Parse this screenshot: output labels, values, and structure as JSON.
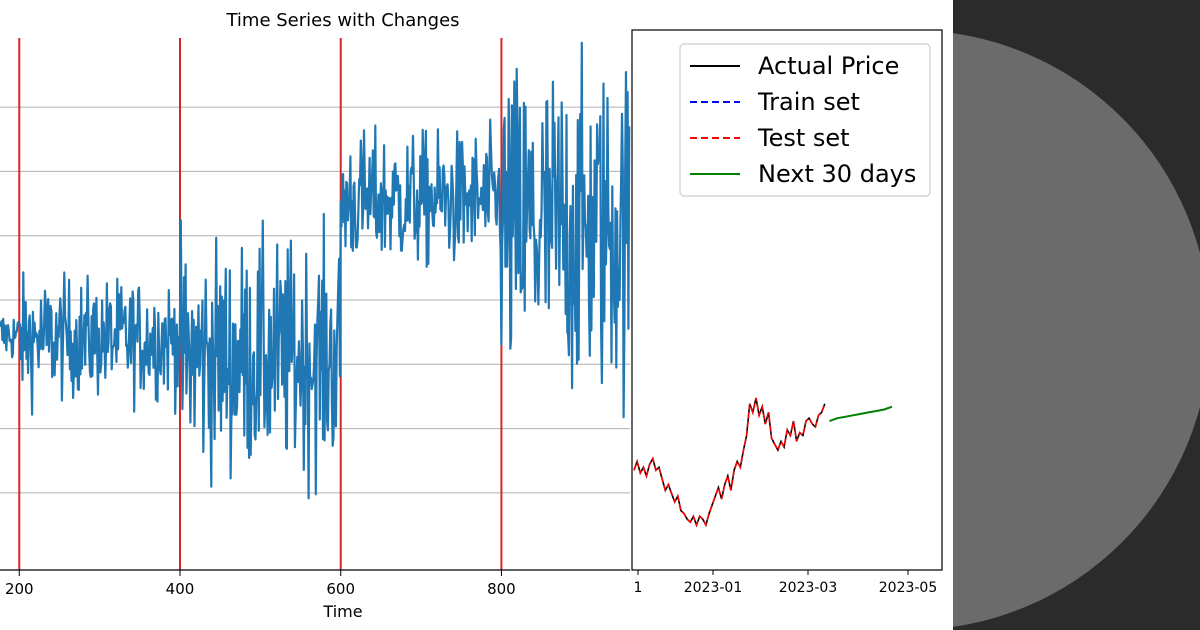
{
  "chart_data": [
    {
      "type": "line",
      "title": "Time Series with Changes",
      "xlabel": "Time",
      "ylabel": "",
      "xlim": [
        176,
        960
      ],
      "ylim": [
        -4.2,
        4.2
      ],
      "x_ticks": [
        200,
        400,
        600,
        800
      ],
      "x_tick_labels": [
        "200",
        "400",
        "600",
        "800"
      ],
      "y_gridlines": [
        3.0,
        2.0,
        1.0,
        0.0,
        -1.0,
        -2.0,
        -3.0
      ],
      "grid": "horizontal",
      "change_points": [
        200,
        400,
        600,
        800
      ],
      "series": [
        {
          "name": "value",
          "color": "#1f77b4",
          "segments": [
            {
              "x_start": 176,
              "x_end": 200,
              "mean": -0.55,
              "spread": 0.35
            },
            {
              "x_start": 200,
              "x_end": 400,
              "mean": -0.6,
              "spread": 0.75
            },
            {
              "x_start": 400,
              "x_end": 600,
              "mean": -0.9,
              "spread": 1.45
            },
            {
              "x_start": 600,
              "x_end": 800,
              "mean": 1.55,
              "spread": 0.85
            },
            {
              "x_start": 800,
              "x_end": 960,
              "mean": 1.1,
              "spread": 2.1
            }
          ]
        }
      ],
      "change_line_color": "#d62728"
    },
    {
      "type": "line",
      "title": "",
      "x_tick_labels": [
        "1",
        "2023-01",
        "2023-03",
        "2023-05"
      ],
      "ylim": [
        0,
        100
      ],
      "legend_position": "top-right",
      "legend": [
        {
          "label": "Actual Price",
          "color": "#000000",
          "style": "solid"
        },
        {
          "label": "Train set",
          "color": "#0000ff",
          "style": "dashed"
        },
        {
          "label": "Test set",
          "color": "#ff0000",
          "style": "dashed"
        },
        {
          "label": "Next 30 days",
          "color": "#008000",
          "style": "solid"
        }
      ],
      "series": [
        {
          "name": "Actual Price",
          "color": "#000000",
          "x_days": [
            0,
            2,
            4,
            6,
            8,
            10,
            12,
            14,
            16,
            18,
            20,
            22,
            24,
            26,
            28,
            30,
            32,
            34,
            36,
            38,
            40,
            42,
            44,
            46,
            48,
            50,
            52,
            54,
            56,
            58,
            60,
            62,
            64,
            66,
            68,
            70,
            72,
            74,
            76,
            78,
            80,
            82,
            84,
            86,
            88,
            90,
            92,
            94,
            96,
            98,
            100,
            102,
            104,
            106,
            108,
            110,
            112,
            114,
            116,
            118,
            120,
            122
          ],
          "values": [
            35,
            38,
            34,
            36,
            33,
            37,
            39,
            35,
            36,
            32,
            28,
            30,
            27,
            24,
            26,
            21,
            20,
            18,
            17,
            19,
            16,
            19,
            18,
            16,
            20,
            23,
            26,
            29,
            25,
            30,
            33,
            28,
            35,
            38,
            36,
            42,
            47,
            58,
            55,
            60,
            54,
            57,
            51,
            55,
            46,
            44,
            42,
            45,
            43,
            49,
            47,
            52,
            45,
            48,
            47,
            52,
            53,
            51,
            50,
            54,
            55,
            58
          ],
          "forecast_x_days": [
            125,
            130,
            135,
            140,
            145,
            150,
            155,
            160,
            165
          ],
          "forecast_values": [
            52,
            53,
            53.5,
            54,
            54.5,
            55,
            55.5,
            56,
            57
          ]
        }
      ]
    }
  ]
}
